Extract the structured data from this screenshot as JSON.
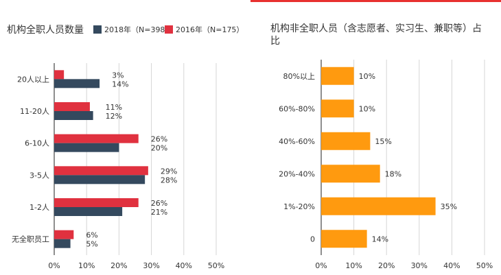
{
  "colors": {
    "series_2018": "#34495e",
    "series_2016": "#e0313f",
    "right_bars": "#ff9a0f",
    "accent_line": "#e8312f"
  },
  "chart_data": [
    {
      "type": "bar",
      "orientation": "horizontal",
      "title": "机构全职人员数量",
      "categories": [
        "20人以上",
        "11-20人",
        "6-10人",
        "3-5人",
        "1-2人",
        "无全职员工"
      ],
      "series": [
        {
          "name": "2016年（N=175）",
          "values": [
            3,
            11,
            26,
            29,
            26,
            6
          ],
          "labels": [
            "3%",
            "11%",
            "26%",
            "29%",
            "26%",
            "6%"
          ]
        },
        {
          "name": "2018年（N=398）",
          "values": [
            14,
            12,
            20,
            28,
            21,
            5
          ],
          "labels": [
            "14%",
            "12%",
            "20%",
            "28%",
            "21%",
            "5%"
          ]
        }
      ],
      "xticks": [
        "0%",
        "10%",
        "20%",
        "30%",
        "40%",
        "50%"
      ],
      "xlim": [
        0,
        50
      ],
      "grid": true,
      "legend_position": "top"
    },
    {
      "type": "bar",
      "orientation": "horizontal",
      "title": "机构非全职人员（含志愿者、实习生、兼职等）占比",
      "categories": [
        "80%以上",
        "60%-80%",
        "40%-60%",
        "20%-40%",
        "1%-20%",
        "0"
      ],
      "series": [
        {
          "values": [
            10,
            10,
            15,
            18,
            35,
            14
          ],
          "labels": [
            "10%",
            "10%",
            "15%",
            "18%",
            "35%",
            "14%"
          ]
        }
      ],
      "xticks": [
        "0%",
        "10%",
        "20%",
        "30%",
        "40%",
        "50%"
      ],
      "xlim": [
        0,
        50
      ],
      "grid": true
    }
  ]
}
